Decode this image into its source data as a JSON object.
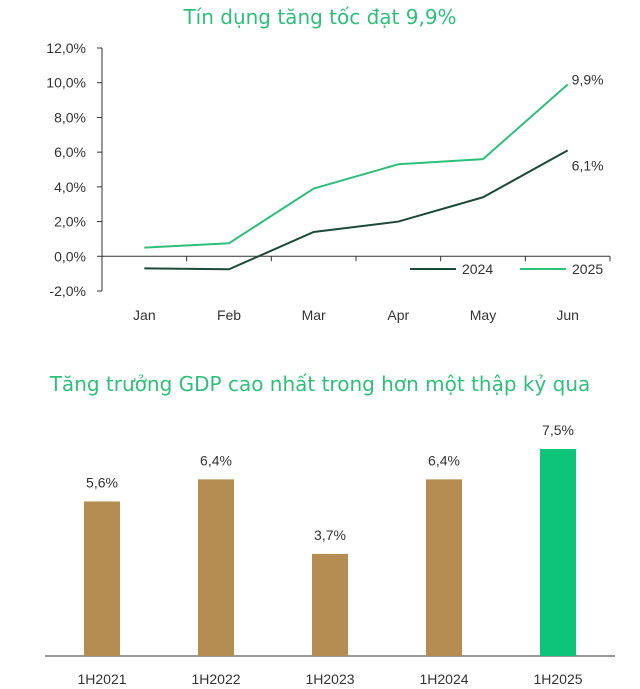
{
  "chart_data": [
    {
      "type": "line",
      "title": "Tín dụng tăng tốc đạt 9,9%",
      "categories": [
        "Jan",
        "Feb",
        "Mar",
        "Apr",
        "May",
        "Jun"
      ],
      "y_tick_labels": [
        "12,0%",
        "10,0%",
        "8,0%",
        "6,0%",
        "4,0%",
        "2,0%",
        "0,0%",
        "-2,0%"
      ],
      "ylim": [
        -2,
        12
      ],
      "series": [
        {
          "name": "2024",
          "color": "#1d4a36",
          "values": [
            -0.7,
            -0.75,
            1.4,
            2.0,
            3.4,
            6.1
          ],
          "end_label": "6,1%"
        },
        {
          "name": "2025",
          "color": "#2ebf7a",
          "values": [
            0.5,
            0.75,
            3.9,
            5.3,
            5.6,
            9.9
          ],
          "end_label": "9,9%"
        }
      ],
      "legend_position": "bottom-right",
      "grid": false
    },
    {
      "type": "bar",
      "title": "Tăng trưởng GDP cao nhất trong hơn một thập kỷ qua",
      "categories": [
        "1H2021",
        "1H2022",
        "1H2023",
        "1H2024",
        "1H2025"
      ],
      "values": [
        5.6,
        6.4,
        3.7,
        6.4,
        7.5
      ],
      "value_labels": [
        "5,6%",
        "6,4%",
        "3,7%",
        "6,4%",
        "7,5%"
      ],
      "colors": [
        "#b58d52",
        "#b58d52",
        "#b58d52",
        "#b58d52",
        "#0dc47a"
      ],
      "grid": false
    }
  ]
}
